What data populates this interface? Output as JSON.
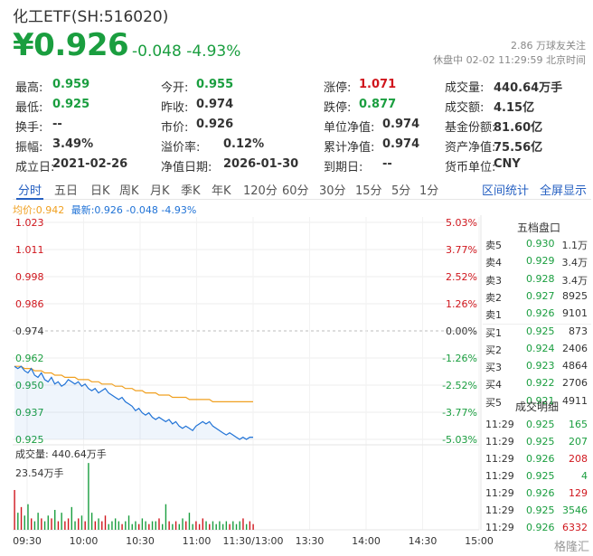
{
  "header": {
    "title": "化工ETF(SH:516020)",
    "price": "¥0.926",
    "change": "-0.048",
    "change_pct": "-4.93%",
    "followers": "2.86 万球友关注",
    "status": "休盘中 02-02 11:29:59 北京时间"
  },
  "quote": [
    {
      "label": "最高:",
      "value": "0.959",
      "color": "green"
    },
    {
      "label": "今开:",
      "value": "0.955",
      "color": "green"
    },
    {
      "label": "涨停:",
      "value": "1.071",
      "color": "red"
    },
    {
      "label": "成交量:",
      "value": "440.64万手",
      "color": "normal"
    },
    {
      "label": "最低:",
      "value": "0.925",
      "color": "green"
    },
    {
      "label": "昨收:",
      "value": "0.974",
      "color": "normal"
    },
    {
      "label": "跌停:",
      "value": "0.877",
      "color": "green"
    },
    {
      "label": "成交额:",
      "value": "4.15亿",
      "color": "normal"
    },
    {
      "label": "换手:",
      "value": "--",
      "color": "normal"
    },
    {
      "label": "市价:",
      "value": "0.926",
      "color": "normal"
    },
    {
      "label": "单位净值:",
      "value": "0.974",
      "color": "normal"
    },
    {
      "label": "基金份额:",
      "value": "81.60亿",
      "color": "normal"
    },
    {
      "label": "振幅:",
      "value": "3.49%",
      "color": "normal"
    },
    {
      "label": "溢价率:",
      "value": "0.12%",
      "color": "normal"
    },
    {
      "label": "累计净值:",
      "value": "0.974",
      "color": "normal"
    },
    {
      "label": "资产净值:",
      "value": "75.56亿",
      "color": "normal"
    },
    {
      "label": "成立日:",
      "value": "2021-02-26",
      "color": "normal"
    },
    {
      "label": "净值日期:",
      "value": "2026-01-30",
      "color": "normal"
    },
    {
      "label": "到期日:",
      "value": "--",
      "color": "normal"
    },
    {
      "label": "货币单位:",
      "value": "CNY",
      "color": "normal"
    }
  ],
  "tabs": [
    "分时",
    "五日",
    "日K",
    "周K",
    "月K",
    "季K",
    "年K",
    "120分",
    "60分",
    "30分",
    "15分",
    "5分",
    "1分"
  ],
  "active_tab": "分时",
  "tools": {
    "interval_stats": "区间统计",
    "fullscreen": "全屏显示"
  },
  "legend": {
    "avg": "均价:0.942",
    "latest": "最新:0.926 -0.048 -4.93%"
  },
  "colors": {
    "price_line": "#1f72d6",
    "avg_line": "#f0a020",
    "up": "#d0161d",
    "down": "#1a9e3f",
    "accent": "#2660c2"
  },
  "chart_data": {
    "type": "line",
    "y_price_ticks": [
      "1.023",
      "1.011",
      "0.998",
      "0.986",
      "0.974",
      "0.962",
      "0.950",
      "0.937",
      "0.925"
    ],
    "y_pct_ticks": [
      "5.03%",
      "3.77%",
      "2.52%",
      "1.26%",
      "0.00%",
      "-1.26%",
      "-2.52%",
      "-3.77%",
      "-5.03%"
    ],
    "ylim": [
      0.925,
      1.023
    ],
    "x_ticks": [
      "09:30",
      "10:00",
      "10:30",
      "11:00",
      "11:30/13:00",
      "13:30",
      "14:00",
      "14:30",
      "15:00"
    ],
    "price": [
      0.958,
      0.957,
      0.958,
      0.956,
      0.955,
      0.957,
      0.954,
      0.953,
      0.955,
      0.952,
      0.951,
      0.953,
      0.95,
      0.951,
      0.949,
      0.95,
      0.952,
      0.951,
      0.95,
      0.951,
      0.949,
      0.95,
      0.948,
      0.947,
      0.948,
      0.946,
      0.947,
      0.948,
      0.946,
      0.945,
      0.944,
      0.943,
      0.944,
      0.942,
      0.941,
      0.94,
      0.938,
      0.939,
      0.937,
      0.936,
      0.937,
      0.935,
      0.934,
      0.935,
      0.934,
      0.933,
      0.934,
      0.932,
      0.933,
      0.931,
      0.93,
      0.931,
      0.93,
      0.929,
      0.931,
      0.932,
      0.933,
      0.932,
      0.933,
      0.931,
      0.93,
      0.929,
      0.928,
      0.927,
      0.928,
      0.927,
      0.926,
      0.925,
      0.926,
      0.925,
      0.926,
      0.926
    ],
    "avg": [
      0.958,
      0.958,
      0.958,
      0.957,
      0.957,
      0.957,
      0.956,
      0.956,
      0.956,
      0.955,
      0.955,
      0.955,
      0.954,
      0.954,
      0.954,
      0.953,
      0.953,
      0.953,
      0.953,
      0.952,
      0.952,
      0.952,
      0.952,
      0.951,
      0.951,
      0.951,
      0.95,
      0.95,
      0.95,
      0.95,
      0.949,
      0.949,
      0.949,
      0.948,
      0.948,
      0.948,
      0.947,
      0.947,
      0.947,
      0.946,
      0.946,
      0.946,
      0.946,
      0.945,
      0.945,
      0.945,
      0.945,
      0.944,
      0.944,
      0.944,
      0.944,
      0.944,
      0.943,
      0.943,
      0.943,
      0.943,
      0.943,
      0.943,
      0.943,
      0.942,
      0.942,
      0.942,
      0.942,
      0.942,
      0.942,
      0.942,
      0.942,
      0.942,
      0.942,
      0.942,
      0.942,
      0.942
    ],
    "volume_label": "成交量: 440.64万手",
    "volume_max_label": "23.54万手",
    "volume_max": 23.54,
    "volume": [
      14,
      6,
      8,
      5,
      9,
      4,
      3,
      6,
      4,
      3,
      5,
      4,
      7,
      3,
      6,
      3,
      4,
      8,
      3,
      4,
      5,
      3,
      23.5,
      6,
      3,
      4,
      3,
      5,
      2,
      3,
      4,
      3,
      2,
      3,
      5,
      2,
      3,
      2,
      4,
      3,
      2,
      3,
      3,
      4,
      2,
      9,
      3,
      2,
      3,
      2,
      4,
      3,
      6,
      2,
      3,
      2,
      4,
      3,
      2,
      3,
      2,
      3,
      2,
      3,
      2,
      3,
      2,
      3,
      4,
      2,
      3,
      2
    ]
  },
  "orderbook": {
    "title": "五档盘口",
    "asks": [
      {
        "label": "卖5",
        "price": "0.930",
        "vol": "1.1万"
      },
      {
        "label": "卖4",
        "price": "0.929",
        "vol": "3.4万"
      },
      {
        "label": "卖3",
        "price": "0.928",
        "vol": "3.4万"
      },
      {
        "label": "卖2",
        "price": "0.927",
        "vol": "8925"
      },
      {
        "label": "卖1",
        "price": "0.926",
        "vol": "9101"
      }
    ],
    "bids": [
      {
        "label": "买1",
        "price": "0.925",
        "vol": "873"
      },
      {
        "label": "买2",
        "price": "0.924",
        "vol": "2406"
      },
      {
        "label": "买3",
        "price": "0.923",
        "vol": "4864"
      },
      {
        "label": "买4",
        "price": "0.922",
        "vol": "2706"
      },
      {
        "label": "买5",
        "price": "0.921",
        "vol": "4911"
      }
    ]
  },
  "trades": {
    "title": "成交明细",
    "rows": [
      {
        "time": "11:29",
        "price": "0.925",
        "vol": "165",
        "side": "down"
      },
      {
        "time": "11:29",
        "price": "0.925",
        "vol": "207",
        "side": "down"
      },
      {
        "time": "11:29",
        "price": "0.926",
        "vol": "208",
        "side": "up"
      },
      {
        "time": "11:29",
        "price": "0.925",
        "vol": "4",
        "side": "down"
      },
      {
        "time": "11:29",
        "price": "0.926",
        "vol": "129",
        "side": "up"
      },
      {
        "time": "11:29",
        "price": "0.925",
        "vol": "3546",
        "side": "down"
      },
      {
        "time": "11:29",
        "price": "0.926",
        "vol": "6332",
        "side": "up"
      }
    ]
  },
  "watermark": "格隆汇"
}
